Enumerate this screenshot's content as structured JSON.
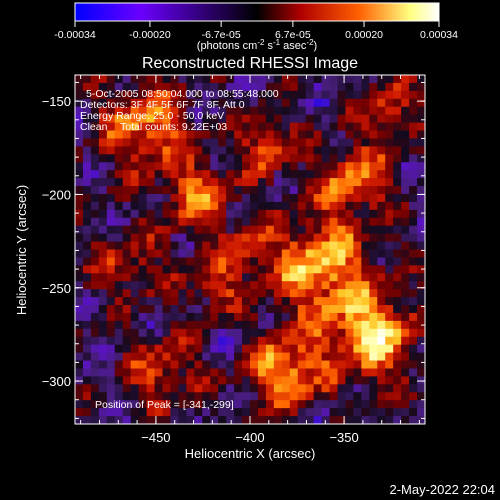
{
  "colorbar": {
    "ticks": [
      "-0.00034",
      "-0.00020",
      "-6.7e-05",
      "6.7e-05",
      "0.00020",
      "0.00034"
    ],
    "tick_values": [
      -0.00034,
      -0.0002,
      -6.7e-05,
      6.7e-05,
      0.0002,
      0.00034
    ],
    "range": [
      -0.00034,
      0.00034
    ],
    "unit_main": "(photons cm",
    "unit_sup1": "-2",
    "unit_mid1": " s",
    "unit_sup2": "-1",
    "unit_mid2": " asec",
    "unit_sup3": "-2",
    "unit_end": ")",
    "colors": [
      "#0000ff",
      "#6a00ff",
      "#000000",
      "#b00000",
      "#ff6000",
      "#ffff80",
      "#ffffff"
    ]
  },
  "plot": {
    "title": "Reconstructed RHESSI Image",
    "info_line1": "5-Oct-2005 08:50:04.000 to 08:55:48.000",
    "info_line2": "Detectors: 3F 4F 5F 6F 7F 8F, Att 0",
    "info_line3": "Energy Range: 25.0 - 50.0 keV",
    "info_line4_a": "Clean",
    "info_line4_b": "Total counts: 9.22E+03",
    "peak_label": "Position of Peak = [-341,-299]"
  },
  "chart_data": {
    "type": "heatmap",
    "title": "Reconstructed RHESSI Image",
    "xlabel": "Heliocentric X (arcsec)",
    "ylabel": "Heliocentric Y (arcsec)",
    "xlim": [
      -493,
      -307
    ],
    "ylim": [
      -323,
      -136
    ],
    "x_ticks": [
      -450,
      -400,
      -350
    ],
    "y_ticks": [
      -300,
      -250,
      -200,
      -150
    ],
    "x_tick_labels": [
      "−450",
      "−400",
      "−350"
    ],
    "y_tick_labels": [
      "−300",
      "−250",
      "−200",
      "−150"
    ],
    "grid": false,
    "legend": "colorbar-top",
    "peak_position": [
      -341,
      -299
    ]
  },
  "footer": {
    "date": "2-May-2022 22:04"
  }
}
